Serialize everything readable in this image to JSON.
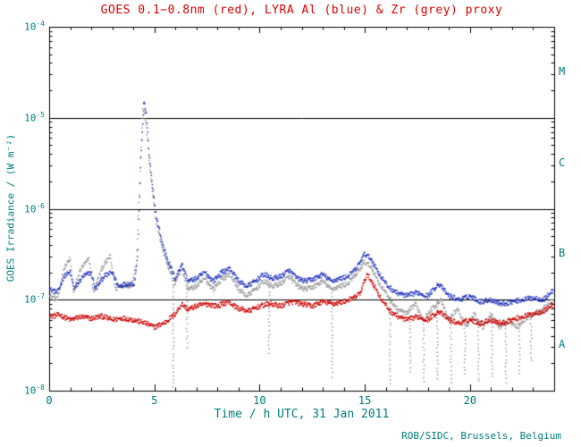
{
  "chart_data": {
    "type": "scatter",
    "title": "GOES 0.1−0.8nm (red), LYRA Al (blue) & Zr (grey) proxy",
    "title_color": "#dd0000",
    "axis_text_color": "#007d7d",
    "axis_line_color": "#000000",
    "xlabel": "Time / h UTC, 31 Jan 2011",
    "ylabel": "GOES Irradiance / (W m⁻²)",
    "footer": "ROB/SIDC, Brussels, Belgium",
    "xlim": [
      0,
      24
    ],
    "ylim_exponents": [
      -8,
      -4
    ],
    "x_major_ticks": [
      0,
      5,
      10,
      15,
      20
    ],
    "x_minor_step": 1,
    "y_tick_exponents": [
      -8,
      -7,
      -6,
      -5,
      -4
    ],
    "hline_levels": [
      1e-07,
      1e-06,
      1e-05
    ],
    "flare_class_labels": [
      {
        "text": "M",
        "exp": -4.5
      },
      {
        "text": "C",
        "exp": -5.5
      },
      {
        "text": "B",
        "exp": -6.5
      },
      {
        "text": "A",
        "exp": -7.5
      }
    ],
    "series": [
      {
        "name": "LYRA Zr proxy",
        "color": "#9a9a9a",
        "points": [
          [
            0,
            1.1e-07
          ],
          [
            0.4,
            1e-07
          ],
          [
            0.7,
            2.2e-07
          ],
          [
            1,
            2.8e-07
          ],
          [
            1.15,
            1.2e-07
          ],
          [
            1.5,
            2.2e-07
          ],
          [
            1.9,
            2.8e-07
          ],
          [
            2.1,
            1.2e-07
          ],
          [
            2.5,
            2.2e-07
          ],
          [
            2.9,
            3e-07
          ],
          [
            3.15,
            1.3e-07
          ],
          [
            3.5,
            1.5e-07
          ],
          [
            3.9,
            1.4e-07
          ],
          [
            4.15,
            2.5e-07
          ],
          [
            4.3,
            2e-06
          ],
          [
            4.45,
            1.3e-05
          ],
          [
            4.6,
            9e-06
          ],
          [
            4.75,
            3.5e-06
          ],
          [
            4.9,
            1.5e-06
          ],
          [
            5.1,
            7e-07
          ],
          [
            5.4,
            3.5e-07
          ],
          [
            5.7,
            2.2e-07
          ],
          [
            5.95,
            1.5e-07
          ],
          [
            6.3,
            2.2e-07
          ],
          [
            6.6,
            1.3e-07
          ],
          [
            7,
            1.4e-07
          ],
          [
            7.4,
            1.7e-07
          ],
          [
            7.8,
            1.3e-07
          ],
          [
            8.2,
            1.7e-07
          ],
          [
            8.6,
            1.9e-07
          ],
          [
            9,
            1.3e-07
          ],
          [
            9.4,
            1.1e-07
          ],
          [
            9.8,
            1.3e-07
          ],
          [
            10.2,
            1.6e-07
          ],
          [
            10.6,
            1.4e-07
          ],
          [
            11,
            1.5e-07
          ],
          [
            11.4,
            1.8e-07
          ],
          [
            11.8,
            1.4e-07
          ],
          [
            12.2,
            1.3e-07
          ],
          [
            12.6,
            1.4e-07
          ],
          [
            13,
            1.6e-07
          ],
          [
            13.4,
            1.3e-07
          ],
          [
            13.8,
            1.4e-07
          ],
          [
            14.2,
            1.5e-07
          ],
          [
            14.6,
            1.9e-07
          ],
          [
            15,
            2.6e-07
          ],
          [
            15.3,
            2.3e-07
          ],
          [
            15.7,
            1.5e-07
          ],
          [
            16.1,
            1.1e-07
          ],
          [
            16.5,
            8e-08
          ],
          [
            17,
            7e-08
          ],
          [
            17.4,
            9e-08
          ],
          [
            17.8,
            6e-08
          ],
          [
            18.2,
            8e-08
          ],
          [
            18.6,
            1e-07
          ],
          [
            19,
            6e-08
          ],
          [
            19.4,
            8e-08
          ],
          [
            19.8,
            5e-08
          ],
          [
            20.2,
            7e-08
          ],
          [
            20.6,
            5e-08
          ],
          [
            21,
            7e-08
          ],
          [
            21.4,
            5e-08
          ],
          [
            21.8,
            6e-08
          ],
          [
            22.2,
            5e-08
          ],
          [
            22.6,
            6e-08
          ],
          [
            23,
            7e-08
          ],
          [
            23.5,
            8e-08
          ],
          [
            24,
            1e-07
          ]
        ],
        "dropouts": [
          [
            5.9,
            1e-08
          ],
          [
            6.55,
            3e-08
          ],
          [
            10.45,
            2.5e-08
          ],
          [
            13.45,
            1.3e-08
          ],
          [
            16.2,
            1.2e-08
          ],
          [
            17.15,
            1.5e-08
          ],
          [
            17.8,
            1.2e-08
          ],
          [
            18.45,
            1.3e-08
          ],
          [
            19.1,
            1.2e-08
          ],
          [
            19.75,
            1.4e-08
          ],
          [
            20.4,
            1.2e-08
          ],
          [
            21.05,
            1.3e-08
          ],
          [
            21.7,
            1.2e-08
          ],
          [
            22.35,
            1.4e-08
          ],
          [
            22.9,
            2e-08
          ]
        ]
      },
      {
        "name": "LYRA Al",
        "color": "#2233bb",
        "points": [
          [
            0,
            1.3e-07
          ],
          [
            0.4,
            1.2e-07
          ],
          [
            0.7,
            1.8e-07
          ],
          [
            1,
            2e-07
          ],
          [
            1.2,
            1.3e-07
          ],
          [
            1.6,
            1.8e-07
          ],
          [
            2,
            2e-07
          ],
          [
            2.2,
            1.3e-07
          ],
          [
            2.6,
            1.8e-07
          ],
          [
            3,
            2e-07
          ],
          [
            3.3,
            1.4e-07
          ],
          [
            3.7,
            1.5e-07
          ],
          [
            4.05,
            1.5e-07
          ],
          [
            4.2,
            3e-07
          ],
          [
            4.35,
            3e-06
          ],
          [
            4.5,
            1.5e-05
          ],
          [
            4.62,
            1.1e-05
          ],
          [
            4.75,
            4e-06
          ],
          [
            4.9,
            1.8e-06
          ],
          [
            5.1,
            8e-07
          ],
          [
            5.4,
            4e-07
          ],
          [
            5.7,
            2.5e-07
          ],
          [
            6,
            1.7e-07
          ],
          [
            6.3,
            2.5e-07
          ],
          [
            6.6,
            1.6e-07
          ],
          [
            7,
            1.7e-07
          ],
          [
            7.4,
            2e-07
          ],
          [
            7.8,
            1.6e-07
          ],
          [
            8.2,
            2e-07
          ],
          [
            8.6,
            2.2e-07
          ],
          [
            9,
            1.6e-07
          ],
          [
            9.4,
            1.4e-07
          ],
          [
            9.8,
            1.6e-07
          ],
          [
            10.2,
            1.9e-07
          ],
          [
            10.6,
            1.7e-07
          ],
          [
            11,
            1.8e-07
          ],
          [
            11.4,
            2.1e-07
          ],
          [
            11.8,
            1.7e-07
          ],
          [
            12.2,
            1.6e-07
          ],
          [
            12.6,
            1.7e-07
          ],
          [
            13,
            1.9e-07
          ],
          [
            13.4,
            1.6e-07
          ],
          [
            13.8,
            1.7e-07
          ],
          [
            14.2,
            1.8e-07
          ],
          [
            14.6,
            2.2e-07
          ],
          [
            15,
            3.2e-07
          ],
          [
            15.3,
            2.8e-07
          ],
          [
            15.7,
            1.9e-07
          ],
          [
            16.1,
            1.4e-07
          ],
          [
            16.5,
            1.2e-07
          ],
          [
            17,
            1.1e-07
          ],
          [
            17.5,
            1.2e-07
          ],
          [
            18,
            1.1e-07
          ],
          [
            18.5,
            1.5e-07
          ],
          [
            19,
            1.1e-07
          ],
          [
            19.5,
            1e-07
          ],
          [
            20,
            1.1e-07
          ],
          [
            20.5,
            9.5e-08
          ],
          [
            21,
            1e-07
          ],
          [
            21.5,
            9e-08
          ],
          [
            22,
            9.5e-08
          ],
          [
            22.5,
            1e-07
          ],
          [
            23,
            1.05e-07
          ],
          [
            23.5,
            1e-07
          ],
          [
            24,
            1.3e-07
          ]
        ],
        "dropouts": []
      },
      {
        "name": "GOES 0.1-0.8nm",
        "color": "#cc0000",
        "points": [
          [
            0,
            6.5e-08
          ],
          [
            0.5,
            6.8e-08
          ],
          [
            1,
            6e-08
          ],
          [
            1.5,
            6.5e-08
          ],
          [
            2,
            6.2e-08
          ],
          [
            2.5,
            6.6e-08
          ],
          [
            3,
            6e-08
          ],
          [
            3.5,
            6.3e-08
          ],
          [
            4,
            6e-08
          ],
          [
            4.5,
            5.6e-08
          ],
          [
            5,
            5e-08
          ],
          [
            5.5,
            5.6e-08
          ],
          [
            6,
            7e-08
          ],
          [
            6.3,
            9e-08
          ],
          [
            6.6,
            7.8e-08
          ],
          [
            7,
            8.5e-08
          ],
          [
            7.5,
            9e-08
          ],
          [
            8,
            8.5e-08
          ],
          [
            8.5,
            9.5e-08
          ],
          [
            9,
            8e-08
          ],
          [
            9.5,
            7.5e-08
          ],
          [
            10,
            8.5e-08
          ],
          [
            10.5,
            9e-08
          ],
          [
            11,
            8.5e-08
          ],
          [
            11.5,
            9.5e-08
          ],
          [
            12,
            9e-08
          ],
          [
            12.5,
            8.5e-08
          ],
          [
            13,
            9.5e-08
          ],
          [
            13.5,
            9e-08
          ],
          [
            14,
            9.5e-08
          ],
          [
            14.5,
            1.05e-07
          ],
          [
            14.8,
            1.2e-07
          ],
          [
            15.1,
            1.9e-07
          ],
          [
            15.4,
            1.5e-07
          ],
          [
            15.8,
            1e-07
          ],
          [
            16.2,
            7.5e-08
          ],
          [
            16.6,
            6.5e-08
          ],
          [
            17,
            6e-08
          ],
          [
            17.5,
            6.5e-08
          ],
          [
            18,
            6e-08
          ],
          [
            18.5,
            7.5e-08
          ],
          [
            19,
            6e-08
          ],
          [
            19.5,
            5.5e-08
          ],
          [
            20,
            6e-08
          ],
          [
            20.5,
            5.5e-08
          ],
          [
            21,
            6e-08
          ],
          [
            21.5,
            5.5e-08
          ],
          [
            22,
            6e-08
          ],
          [
            22.5,
            6.5e-08
          ],
          [
            23,
            7e-08
          ],
          [
            23.5,
            7.5e-08
          ],
          [
            24,
            9e-08
          ]
        ],
        "dropouts": []
      }
    ]
  }
}
